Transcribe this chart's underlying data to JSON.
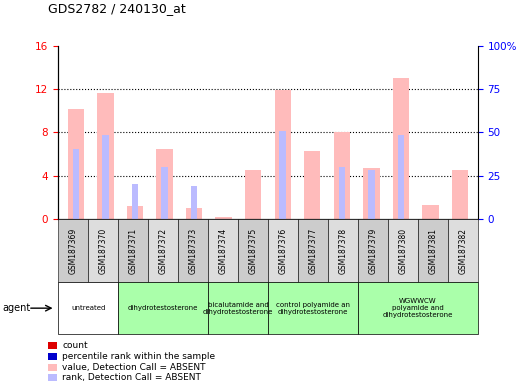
{
  "title": "GDS2782 / 240130_at",
  "samples": [
    "GSM187369",
    "GSM187370",
    "GSM187371",
    "GSM187372",
    "GSM187373",
    "GSM187374",
    "GSM187375",
    "GSM187376",
    "GSM187377",
    "GSM187378",
    "GSM187379",
    "GSM187380",
    "GSM187381",
    "GSM187382"
  ],
  "absent_value": [
    10.2,
    11.7,
    1.2,
    6.5,
    1.0,
    0.2,
    4.5,
    11.9,
    6.3,
    8.0,
    4.7,
    13.0,
    1.3,
    4.5
  ],
  "absent_rank_pct": [
    40.6,
    48.8,
    20.0,
    30.0,
    18.8,
    null,
    null,
    50.6,
    null,
    30.0,
    28.1,
    48.8,
    null,
    null
  ],
  "ylim_left": [
    0,
    16
  ],
  "ylim_right": [
    0,
    100
  ],
  "yticks_left": [
    0,
    4,
    8,
    12,
    16
  ],
  "yticks_right": [
    0,
    25,
    50,
    75,
    100
  ],
  "yticklabels_left": [
    "0",
    "4",
    "8",
    "12",
    "16"
  ],
  "yticklabels_right": [
    "0",
    "25",
    "50",
    "75",
    "100%"
  ],
  "absent_bar_color": "#ffbbbb",
  "absent_rank_color": "#bbbbff",
  "groups": [
    {
      "label": "untreated",
      "start": 0,
      "end": 2,
      "color": "#ffffff"
    },
    {
      "label": "dihydrotestosterone",
      "start": 2,
      "end": 5,
      "color": "#aaffaa"
    },
    {
      "label": "bicalutamide and\ndihydrotestosterone",
      "start": 5,
      "end": 7,
      "color": "#aaffaa"
    },
    {
      "label": "control polyamide an\ndihydrotestosterone",
      "start": 7,
      "end": 10,
      "color": "#aaffaa"
    },
    {
      "label": "WGWWCW\npolyamide and\ndihydrotestosterone",
      "start": 10,
      "end": 14,
      "color": "#aaffaa"
    }
  ],
  "legend_items": [
    {
      "label": "count",
      "color": "#dd0000"
    },
    {
      "label": "percentile rank within the sample",
      "color": "#0000cc"
    },
    {
      "label": "value, Detection Call = ABSENT",
      "color": "#ffbbbb"
    },
    {
      "label": "rank, Detection Call = ABSENT",
      "color": "#bbbbff"
    }
  ]
}
